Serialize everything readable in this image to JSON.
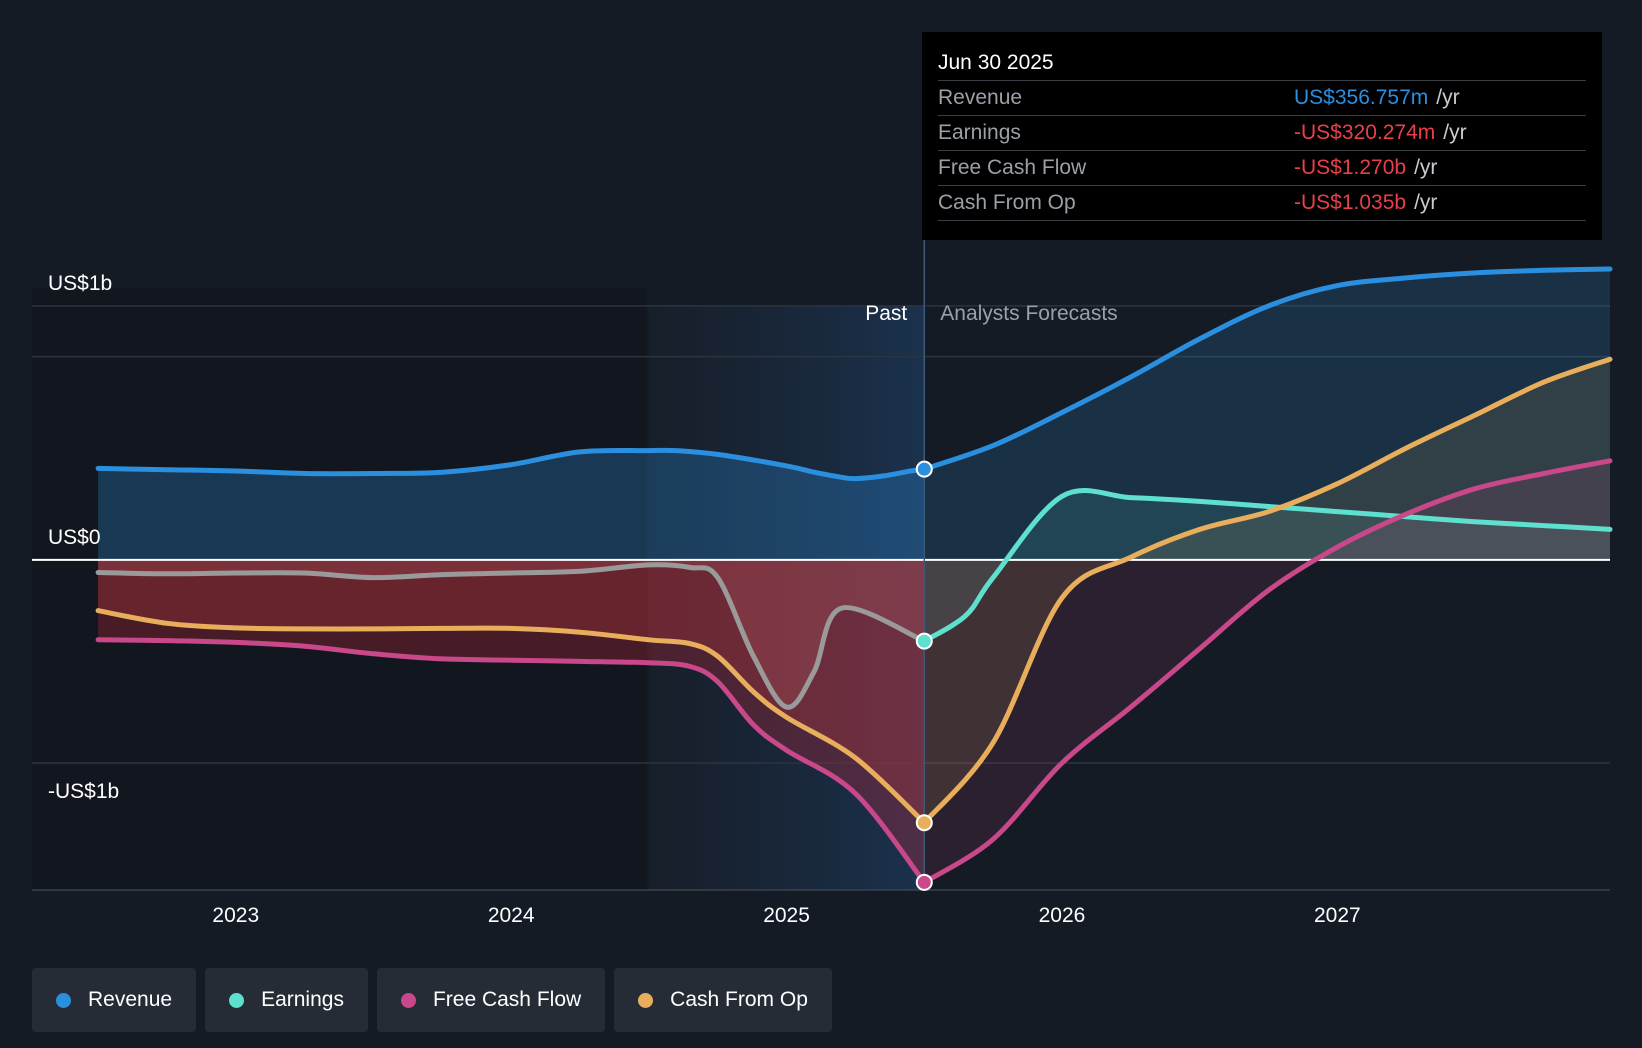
{
  "tooltip": {
    "date": "Jun 30 2025",
    "unit": "/yr",
    "rows": [
      {
        "name": "Revenue",
        "value": "US$356.757m",
        "color": "#2b8fe0"
      },
      {
        "name": "Earnings",
        "value": "-US$320.274m",
        "color": "#e8404a"
      },
      {
        "name": "Free Cash Flow",
        "value": "-US$1.270b",
        "color": "#e8404a"
      },
      {
        "name": "Cash From Op",
        "value": "-US$1.035b",
        "color": "#e8404a"
      }
    ]
  },
  "legend": [
    {
      "label": "Revenue",
      "color": "#2b8fe0"
    },
    {
      "label": "Earnings",
      "color": "#5fe0cf"
    },
    {
      "label": "Free Cash Flow",
      "color": "#c8488a"
    },
    {
      "label": "Cash From Op",
      "color": "#e8ae5c"
    }
  ],
  "chart_data": {
    "type": "line",
    "title": "",
    "xlabel": "",
    "ylabel": "",
    "x_ticks": [
      {
        "label": "2023",
        "x": 2023.0
      },
      {
        "label": "2024",
        "x": 2024.0
      },
      {
        "label": "2025",
        "x": 2025.0
      },
      {
        "label": "2026",
        "x": 2026.0
      },
      {
        "label": "2027",
        "x": 2027.0
      }
    ],
    "y_axis_labels": [
      {
        "label": "US$1b",
        "y": 1.0
      },
      {
        "label": "US$0",
        "y": 0.0
      },
      {
        "label": "-US$1b",
        "y": -1.0
      }
    ],
    "xlim": [
      2022.26,
      2027.99
    ],
    "ylim": [
      -1.3,
      1.22
    ],
    "forecast_start": 2025.5,
    "past_shade_start": 2024.5,
    "zone_labels": {
      "past": "Past",
      "forecast": "Analysts Forecasts"
    },
    "series": [
      {
        "name": "Revenue",
        "color": "#2b8fe0",
        "marker_index": 17,
        "points": [
          [
            2022.5,
            0.36
          ],
          [
            2022.75,
            0.355
          ],
          [
            2023.0,
            0.35
          ],
          [
            2023.25,
            0.34
          ],
          [
            2023.5,
            0.34
          ],
          [
            2023.75,
            0.345
          ],
          [
            2024.0,
            0.375
          ],
          [
            2024.25,
            0.425
          ],
          [
            2024.5,
            0.43
          ],
          [
            2024.6,
            0.43
          ],
          [
            2024.75,
            0.415
          ],
          [
            2025.0,
            0.37
          ],
          [
            2025.1,
            0.345
          ],
          [
            2025.2,
            0.325
          ],
          [
            2025.25,
            0.32
          ],
          [
            2025.35,
            0.33
          ],
          [
            2025.45,
            0.35
          ],
          [
            2025.5,
            0.357
          ],
          [
            2025.75,
            0.45
          ],
          [
            2026.0,
            0.58
          ],
          [
            2026.25,
            0.72
          ],
          [
            2026.5,
            0.87
          ],
          [
            2026.75,
            1.0
          ],
          [
            2027.0,
            1.08
          ],
          [
            2027.25,
            1.11
          ],
          [
            2027.5,
            1.13
          ],
          [
            2027.75,
            1.14
          ],
          [
            2027.99,
            1.145
          ]
        ]
      },
      {
        "name": "Earnings",
        "color": "#5fe0cf",
        "past_color": "#9a9a9a",
        "marker_index": 15,
        "points": [
          [
            2022.5,
            -0.05
          ],
          [
            2022.75,
            -0.055
          ],
          [
            2023.0,
            -0.052
          ],
          [
            2023.25,
            -0.052
          ],
          [
            2023.5,
            -0.07
          ],
          [
            2023.75,
            -0.058
          ],
          [
            2024.0,
            -0.052
          ],
          [
            2024.25,
            -0.045
          ],
          [
            2024.5,
            -0.02
          ],
          [
            2024.65,
            -0.03
          ],
          [
            2024.75,
            -0.07
          ],
          [
            2024.88,
            -0.38
          ],
          [
            2025.0,
            -0.58
          ],
          [
            2025.1,
            -0.44
          ],
          [
            2025.2,
            -0.19
          ],
          [
            2025.5,
            -0.32
          ],
          [
            2025.65,
            -0.22
          ],
          [
            2025.75,
            -0.07
          ],
          [
            2026.0,
            0.25
          ],
          [
            2026.25,
            0.245
          ],
          [
            2026.5,
            0.23
          ],
          [
            2026.75,
            0.21
          ],
          [
            2027.0,
            0.19
          ],
          [
            2027.25,
            0.17
          ],
          [
            2027.5,
            0.15
          ],
          [
            2027.75,
            0.135
          ],
          [
            2027.99,
            0.12
          ]
        ]
      },
      {
        "name": "Free Cash Flow",
        "color": "#c8488a",
        "marker_index": 14,
        "points": [
          [
            2022.5,
            -0.315
          ],
          [
            2022.75,
            -0.318
          ],
          [
            2023.0,
            -0.325
          ],
          [
            2023.25,
            -0.34
          ],
          [
            2023.5,
            -0.37
          ],
          [
            2023.75,
            -0.39
          ],
          [
            2024.0,
            -0.395
          ],
          [
            2024.25,
            -0.4
          ],
          [
            2024.5,
            -0.405
          ],
          [
            2024.65,
            -0.42
          ],
          [
            2024.75,
            -0.48
          ],
          [
            2024.88,
            -0.65
          ],
          [
            2025.0,
            -0.75
          ],
          [
            2025.25,
            -0.92
          ],
          [
            2025.5,
            -1.27
          ],
          [
            2025.75,
            -1.1
          ],
          [
            2026.0,
            -0.8
          ],
          [
            2026.25,
            -0.58
          ],
          [
            2026.5,
            -0.35
          ],
          [
            2026.75,
            -0.12
          ],
          [
            2027.0,
            0.05
          ],
          [
            2027.25,
            0.18
          ],
          [
            2027.5,
            0.28
          ],
          [
            2027.75,
            0.34
          ],
          [
            2027.99,
            0.39
          ]
        ]
      },
      {
        "name": "Cash From Op",
        "color": "#e8ae5c",
        "past_color": "#e8ae5c",
        "marker_index": 14,
        "points": [
          [
            2022.5,
            -0.2
          ],
          [
            2022.75,
            -0.25
          ],
          [
            2023.0,
            -0.268
          ],
          [
            2023.25,
            -0.272
          ],
          [
            2023.5,
            -0.272
          ],
          [
            2023.75,
            -0.27
          ],
          [
            2024.0,
            -0.27
          ],
          [
            2024.25,
            -0.285
          ],
          [
            2024.5,
            -0.315
          ],
          [
            2024.65,
            -0.33
          ],
          [
            2024.75,
            -0.38
          ],
          [
            2024.88,
            -0.52
          ],
          [
            2025.0,
            -0.62
          ],
          [
            2025.25,
            -0.78
          ],
          [
            2025.5,
            -1.035
          ],
          [
            2025.75,
            -0.72
          ],
          [
            2026.0,
            -0.15
          ],
          [
            2026.25,
            0.01
          ],
          [
            2026.5,
            0.12
          ],
          [
            2026.75,
            0.19
          ],
          [
            2027.0,
            0.3
          ],
          [
            2027.25,
            0.44
          ],
          [
            2027.5,
            0.57
          ],
          [
            2027.75,
            0.7
          ],
          [
            2027.99,
            0.79
          ]
        ]
      }
    ]
  }
}
